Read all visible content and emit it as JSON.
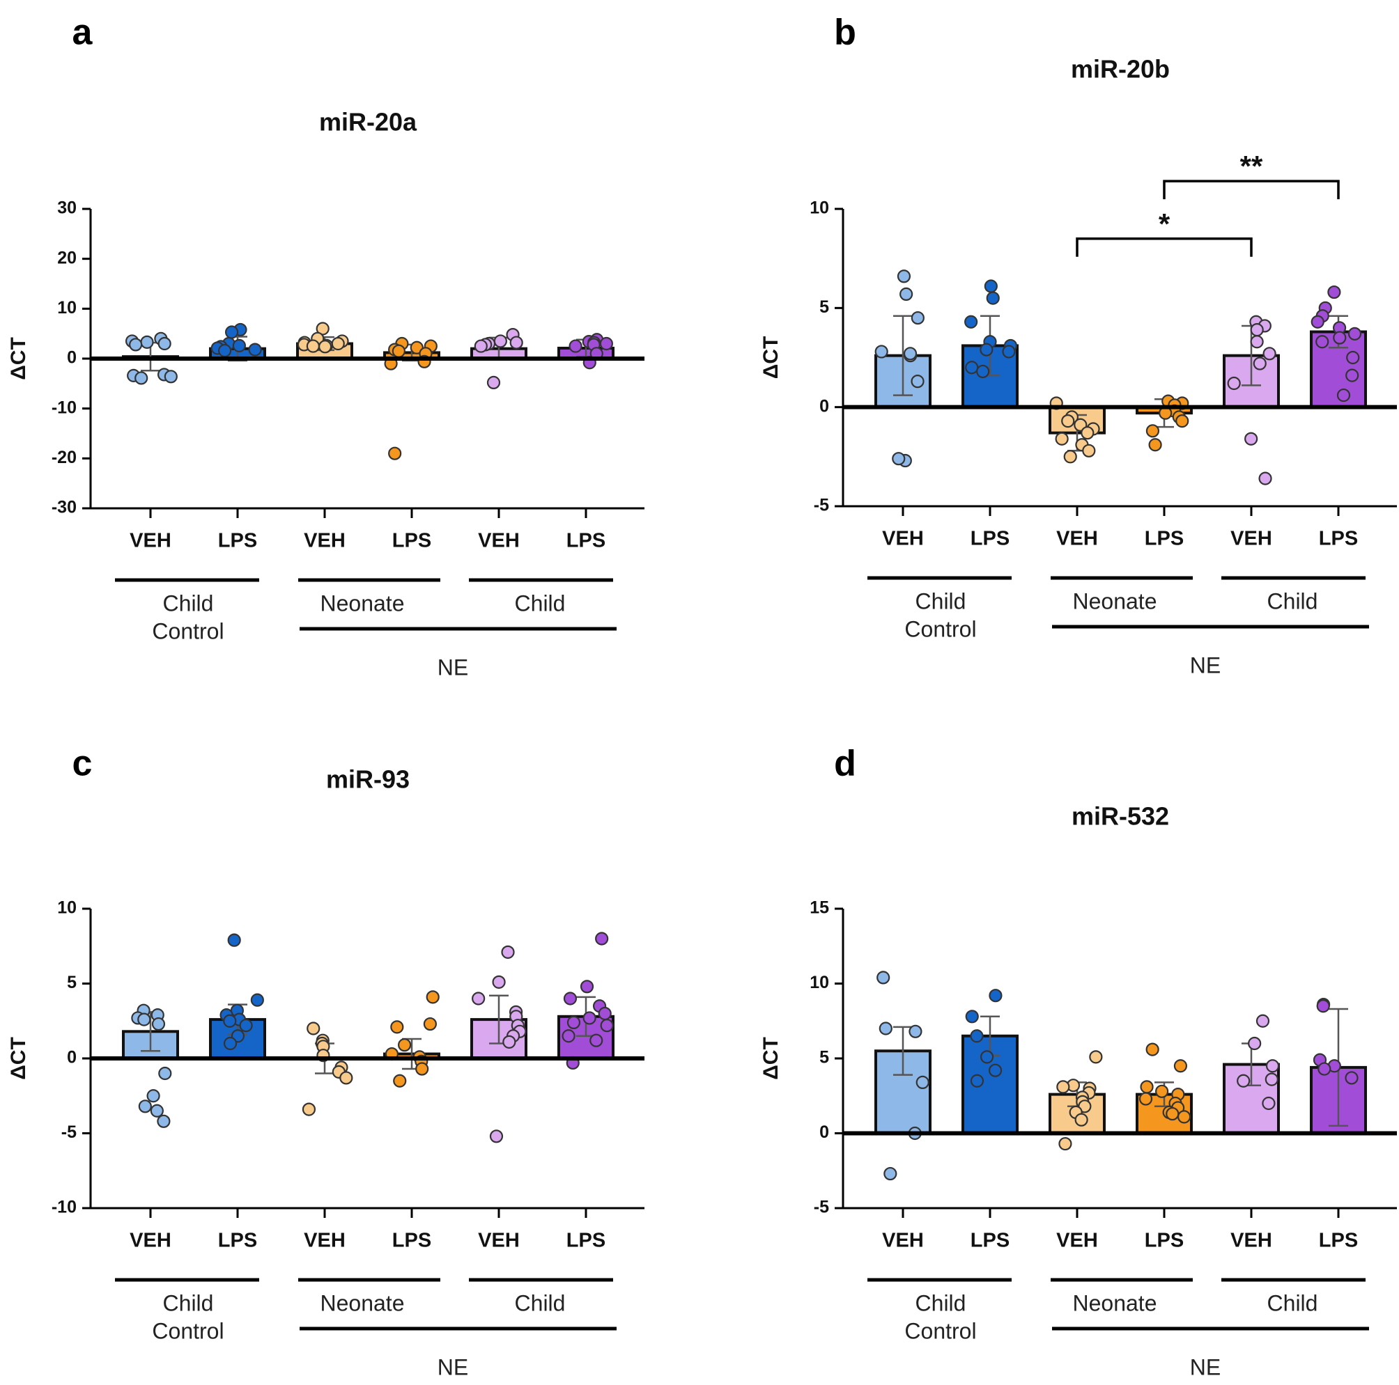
{
  "colors": {
    "child_control_veh": "#8EB8E8",
    "child_control_lps": "#1565C9",
    "neonate_veh": "#F8CB8C",
    "neonate_lps": "#F5961E",
    "child_veh": "#D9A8EE",
    "child_lps": "#A24DD8",
    "axis": "#000000"
  },
  "chart_data": [
    {
      "panel": "a",
      "type": "bar",
      "title": "miR-20a",
      "ylabel": "ΔCT",
      "ylim": [
        -30,
        30
      ],
      "yticks": [
        30,
        20,
        10,
        0,
        -10,
        -20,
        -30
      ],
      "yticklabels": [
        "30",
        "20",
        "10",
        "0",
        "-10",
        "-20",
        "-30"
      ],
      "categories": [
        "VEH",
        "LPS",
        "VEH",
        "LPS",
        "VEH",
        "LPS"
      ],
      "groups": [
        {
          "label_lines": [
            "Child",
            "Control"
          ]
        },
        {
          "label_lines": [
            "Neonate"
          ]
        },
        {
          "label_lines": [
            "Child"
          ]
        }
      ],
      "supergroup_label": "NE",
      "bars": [
        {
          "value": 0.4,
          "err": 2.8,
          "points": [
            4.0,
            3.5,
            3.3,
            3.0,
            2.8,
            -3.2,
            -3.4,
            -3.6,
            -3.9
          ]
        },
        {
          "value": 2.0,
          "err": 2.4,
          "points": [
            5.8,
            5.3,
            3.0,
            2.6,
            2.4,
            2.1,
            1.8,
            1.6
          ]
        },
        {
          "value": 3.0,
          "err": 1.3,
          "points": [
            6.0,
            4.0,
            3.5,
            3.2,
            3.0,
            2.8,
            2.6,
            2.5,
            2.4
          ]
        },
        {
          "value": 1.2,
          "err": 1.6,
          "points": [
            3.0,
            2.5,
            2.2,
            1.8,
            1.5,
            1.0,
            -0.6,
            -1.0,
            -19.0
          ]
        },
        {
          "value": 2.0,
          "err": 2.2,
          "points": [
            4.8,
            3.5,
            3.2,
            3.0,
            2.8,
            2.5,
            -4.8
          ]
        },
        {
          "value": 2.1,
          "err": 1.7,
          "points": [
            3.8,
            3.4,
            3.2,
            3.0,
            2.8,
            2.5,
            1.0,
            -0.8
          ]
        }
      ],
      "significance": []
    },
    {
      "panel": "b",
      "type": "bar",
      "title": "miR-20b",
      "ylabel": "ΔCT",
      "ylim": [
        -5,
        10
      ],
      "yticks": [
        10,
        5,
        0,
        -5
      ],
      "yticklabels": [
        "10",
        "5",
        "0",
        "-5"
      ],
      "categories": [
        "VEH",
        "LPS",
        "VEH",
        "LPS",
        "VEH",
        "LPS"
      ],
      "groups": [
        {
          "label_lines": [
            "Child",
            "Control"
          ]
        },
        {
          "label_lines": [
            "Neonate"
          ]
        },
        {
          "label_lines": [
            "Child"
          ]
        }
      ],
      "supergroup_label": "NE",
      "bars": [
        {
          "value": 2.6,
          "err": 2.0,
          "points": [
            6.6,
            5.7,
            4.5,
            2.8,
            2.6,
            2.7,
            1.3,
            -2.7,
            -2.6
          ]
        },
        {
          "value": 3.1,
          "err": 1.5,
          "points": [
            6.1,
            5.5,
            4.3,
            3.3,
            3.1,
            2.9,
            2.8,
            2.0,
            1.8
          ]
        },
        {
          "value": -1.3,
          "err": 0.9,
          "points": [
            0.2,
            -0.5,
            -0.7,
            -0.9,
            -1.1,
            -1.3,
            -1.6,
            -1.9,
            -2.2,
            -2.5
          ]
        },
        {
          "value": -0.3,
          "err": 0.7,
          "points": [
            0.3,
            0.2,
            0.1,
            -0.2,
            -0.3,
            -0.5,
            -0.7,
            -1.2,
            -1.9
          ]
        },
        {
          "value": 2.6,
          "err": 1.5,
          "points": [
            4.3,
            4.1,
            3.9,
            3.3,
            2.7,
            2.2,
            1.2,
            -1.6,
            -3.6
          ]
        },
        {
          "value": 3.8,
          "err": 0.8,
          "points": [
            5.8,
            5.0,
            4.6,
            4.3,
            4.0,
            3.7,
            3.5,
            3.3,
            2.5,
            1.6,
            0.6
          ]
        }
      ],
      "significance": [
        {
          "from": 2,
          "to": 4,
          "label": "*",
          "y": 8.5
        },
        {
          "from": 3,
          "to": 5,
          "label": "**",
          "y": 11.4
        }
      ]
    },
    {
      "panel": "c",
      "type": "bar",
      "title": "miR-93",
      "ylabel": "ΔCT",
      "ylim": [
        -10,
        10
      ],
      "yticks": [
        10,
        5,
        0,
        -5,
        -10
      ],
      "yticklabels": [
        "10",
        "5",
        "0",
        "-5",
        "-10"
      ],
      "categories": [
        "VEH",
        "LPS",
        "VEH",
        "LPS",
        "VEH",
        "LPS"
      ],
      "groups": [
        {
          "label_lines": [
            "Child",
            "Control"
          ]
        },
        {
          "label_lines": [
            "Neonate"
          ]
        },
        {
          "label_lines": [
            "Child"
          ]
        }
      ],
      "supergroup_label": "NE",
      "bars": [
        {
          "value": 1.8,
          "err": 1.3,
          "points": [
            3.2,
            2.9,
            2.7,
            2.6,
            2.3,
            -1.0,
            -2.5,
            -3.5,
            -3.2,
            -4.2
          ]
        },
        {
          "value": 2.6,
          "err": 1.0,
          "points": [
            7.9,
            3.9,
            3.2,
            2.9,
            2.6,
            2.5,
            2.2,
            1.5,
            1.0
          ]
        },
        {
          "value": 0.0,
          "err": 1.0,
          "points": [
            2.0,
            1.2,
            1.0,
            0.8,
            0.2,
            -0.6,
            -0.9,
            -1.3,
            -3.4
          ]
        },
        {
          "value": 0.3,
          "err": 1.0,
          "points": [
            4.1,
            2.3,
            2.1,
            0.9,
            0.3,
            0.1,
            -0.2,
            -0.7,
            -1.5
          ]
        },
        {
          "value": 2.6,
          "err": 1.6,
          "points": [
            7.1,
            5.1,
            4.0,
            3.1,
            2.8,
            2.2,
            1.8,
            1.5,
            1.1,
            -5.2
          ]
        },
        {
          "value": 2.8,
          "err": 1.3,
          "points": [
            8.0,
            4.8,
            4.0,
            3.5,
            3.0,
            2.7,
            2.4,
            2.2,
            1.5,
            1.2,
            -0.3
          ]
        }
      ],
      "significance": []
    },
    {
      "panel": "d",
      "type": "bar",
      "title": "miR-532",
      "ylabel": "ΔCT",
      "ylim": [
        -5,
        15
      ],
      "yticks": [
        15,
        10,
        5,
        0,
        -5
      ],
      "yticklabels": [
        "15",
        "10",
        "5",
        "0",
        "-5"
      ],
      "categories": [
        "VEH",
        "LPS",
        "VEH",
        "LPS",
        "VEH",
        "LPS"
      ],
      "groups": [
        {
          "label_lines": [
            "Child",
            "Control"
          ]
        },
        {
          "label_lines": [
            "Neonate"
          ]
        },
        {
          "label_lines": [
            "Child"
          ]
        }
      ],
      "supergroup_label": "NE",
      "bars": [
        {
          "value": 5.5,
          "err": 1.6,
          "points": [
            10.4,
            7.0,
            6.8,
            3.4,
            0.0,
            -2.7
          ]
        },
        {
          "value": 6.5,
          "err": 1.3,
          "points": [
            9.2,
            7.8,
            6.5,
            5.1,
            4.2,
            3.5
          ]
        },
        {
          "value": 2.6,
          "err": 0.8,
          "points": [
            5.1,
            3.2,
            3.1,
            3.0,
            2.7,
            2.4,
            2.1,
            1.8,
            1.4,
            0.9,
            -0.7
          ]
        },
        {
          "value": 2.6,
          "err": 0.8,
          "points": [
            5.6,
            4.5,
            3.1,
            2.8,
            2.6,
            2.3,
            2.0,
            1.7,
            1.4,
            1.3,
            1.1
          ]
        },
        {
          "value": 4.6,
          "err": 1.4,
          "points": [
            7.5,
            6.0,
            4.5,
            3.6,
            3.5,
            2.0
          ]
        },
        {
          "value": 4.4,
          "err": 3.9,
          "points": [
            8.6,
            8.5,
            4.9,
            4.5,
            4.3,
            3.7
          ]
        }
      ],
      "significance": []
    }
  ]
}
